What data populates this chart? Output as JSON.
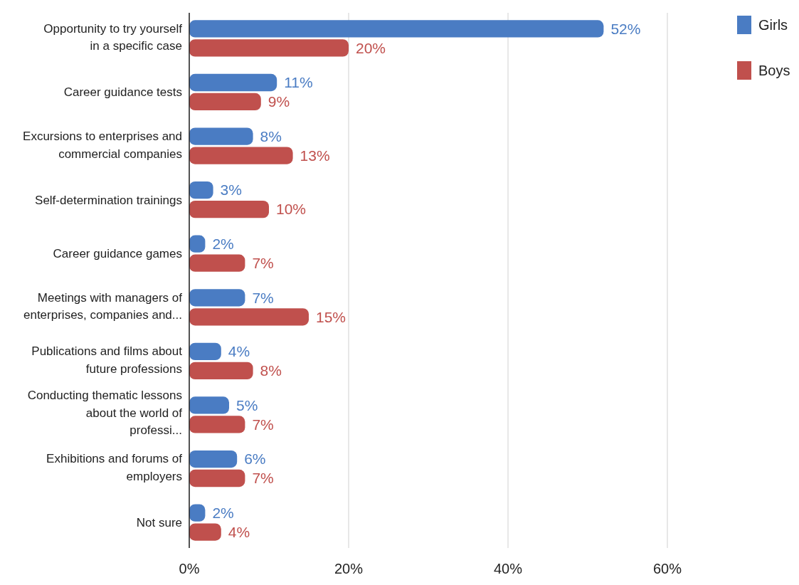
{
  "chart_data": {
    "type": "bar",
    "orientation": "horizontal",
    "categories": [
      "Opportunity to try yourself in a specific case",
      "Career guidance tests",
      "Excursions to enterprises and commercial companies",
      "Self-determination trainings",
      "Career guidance games",
      "Meetings with managers of enterprises, companies and...",
      "Publications and films about future professions",
      "Conducting thematic lessons about the world of professi...",
      "Exhibitions and forums of employers",
      "Not sure"
    ],
    "series": [
      {
        "name": "Girls",
        "color": "#4a7cc3",
        "values": [
          52,
          11,
          8,
          3,
          2,
          7,
          4,
          5,
          6,
          2
        ],
        "value_labels": [
          "52%",
          "11%",
          "8%",
          "3%",
          "2%",
          "7%",
          "4%",
          "5%",
          "6%",
          "2%"
        ]
      },
      {
        "name": "Boys",
        "color": "#c0504d",
        "values": [
          20,
          9,
          13,
          10,
          7,
          15,
          8,
          7,
          7,
          4
        ],
        "value_labels": [
          "20%",
          "9%",
          "13%",
          "10%",
          "7%",
          "15%",
          "8%",
          "7%",
          "7%",
          "4%"
        ]
      }
    ],
    "xlim": [
      0,
      60
    ],
    "xticks": [
      {
        "value": 0,
        "label": "0%"
      },
      {
        "value": 20,
        "label": "20%"
      },
      {
        "value": 40,
        "label": "40%"
      },
      {
        "value": 60,
        "label": "60%"
      }
    ],
    "grid": "x",
    "legend": "top right"
  }
}
